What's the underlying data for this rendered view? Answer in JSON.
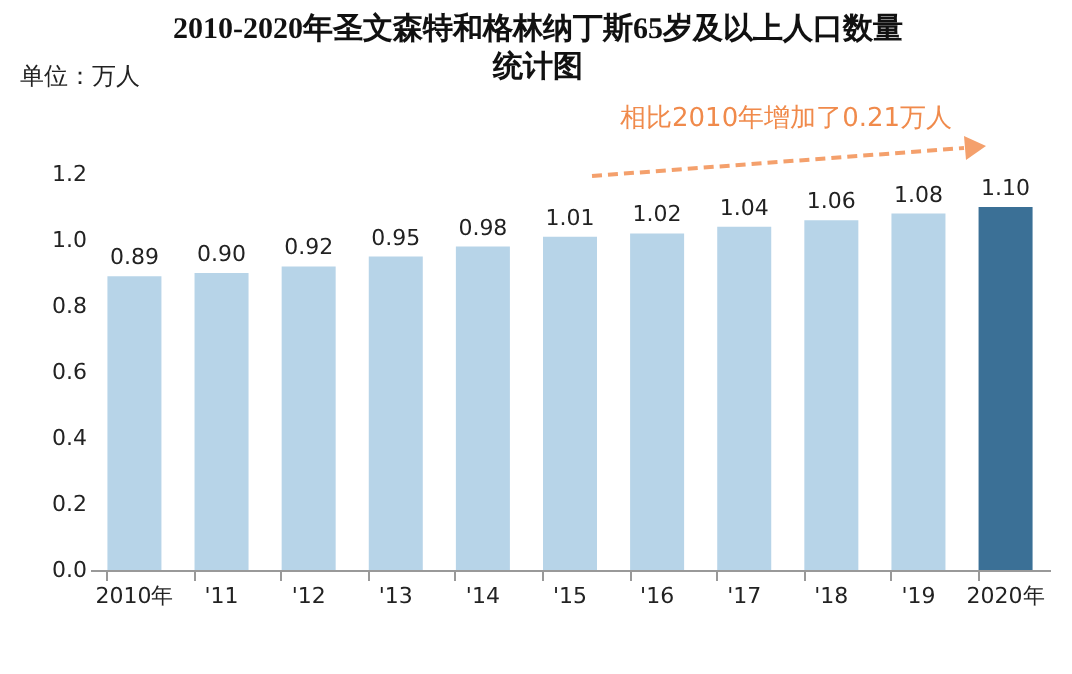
{
  "chart_data": {
    "type": "bar",
    "title": "2010-2020年圣文森特和格林纳丁斯65岁及以上人口数量统计图",
    "ylabel": "单位：万人",
    "categories": [
      "2010年",
      "'11",
      "'12",
      "'13",
      "'14",
      "'15",
      "'16",
      "'17",
      "'18",
      "'19",
      "2020年"
    ],
    "values": [
      0.89,
      0.9,
      0.92,
      0.95,
      0.98,
      1.01,
      1.02,
      1.04,
      1.06,
      1.08,
      1.1
    ],
    "value_labels": [
      "0.89",
      "0.90",
      "0.92",
      "0.95",
      "0.98",
      "1.01",
      "1.02",
      "1.04",
      "1.06",
      "1.08",
      "1.10"
    ],
    "colors": [
      "#b7d4e8",
      "#b7d4e8",
      "#b7d4e8",
      "#b7d4e8",
      "#b7d4e8",
      "#b7d4e8",
      "#b7d4e8",
      "#b7d4e8",
      "#b7d4e8",
      "#b7d4e8",
      "#3b7096"
    ],
    "ylim": [
      0,
      1.2
    ],
    "yticks": [
      {
        "value": 0,
        "label": "0.0"
      },
      {
        "value": 0.2,
        "label": "0.2"
      },
      {
        "value": 0.4,
        "label": "0.4"
      },
      {
        "value": 0.6,
        "label": "0.6"
      },
      {
        "value": 0.8,
        "label": "0.8"
      },
      {
        "value": 1.0,
        "label": "1.0"
      },
      {
        "value": 1.2,
        "label": "1.2"
      }
    ],
    "annotations": [
      "相比2010年增加了0.21万人"
    ],
    "grid": false
  }
}
